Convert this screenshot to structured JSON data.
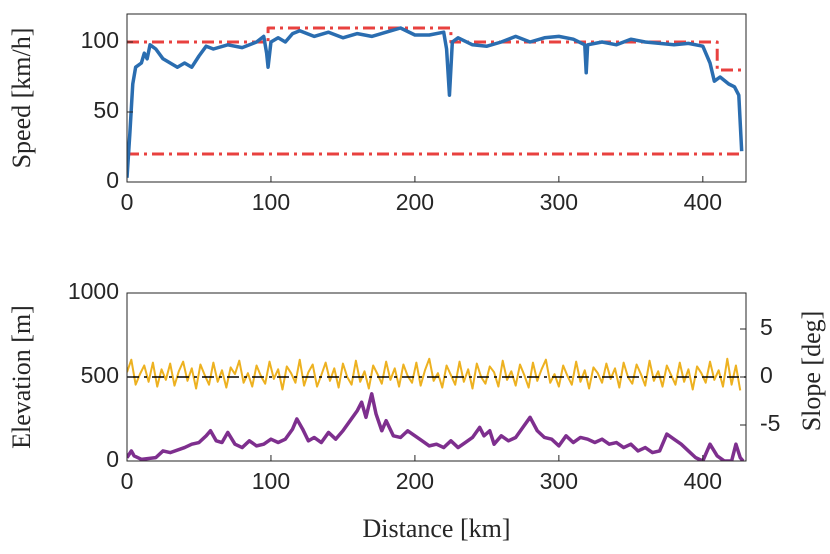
{
  "chart_data": [
    {
      "type": "line",
      "ylabel": "Speed [km/h]",
      "xlim": [
        0,
        430
      ],
      "xticks": [
        0,
        100,
        200,
        300,
        400
      ],
      "ylim": [
        0,
        120
      ],
      "yticks": [
        0,
        50,
        100
      ],
      "series": [
        {
          "color": "#e8413f",
          "style": "dashdot",
          "x": [
            0,
            98,
            98,
            225,
            225,
            410,
            410,
            428
          ],
          "values": [
            100,
            100,
            110,
            110,
            100,
            100,
            80,
            80
          ]
        },
        {
          "color": "#e8413f",
          "style": "dashdot",
          "x": [
            0,
            428
          ],
          "values": [
            20,
            20
          ]
        },
        {
          "color": "#2a6db0",
          "style": "solid",
          "x": [
            0,
            2,
            4,
            6,
            10,
            12,
            14,
            16,
            20,
            25,
            30,
            35,
            40,
            45,
            50,
            55,
            60,
            70,
            80,
            90,
            95,
            97,
            98,
            100,
            105,
            110,
            115,
            120,
            130,
            140,
            150,
            160,
            170,
            180,
            190,
            200,
            210,
            220,
            222,
            224,
            226,
            230,
            240,
            250,
            260,
            270,
            280,
            290,
            300,
            310,
            318,
            319,
            320,
            330,
            340,
            350,
            360,
            370,
            380,
            390,
            400,
            405,
            408,
            412,
            418,
            422,
            425,
            427
          ],
          "values": [
            3,
            35,
            70,
            82,
            85,
            92,
            88,
            98,
            95,
            88,
            85,
            82,
            85,
            82,
            90,
            97,
            95,
            98,
            96,
            100,
            104,
            92,
            82,
            100,
            103,
            100,
            106,
            108,
            104,
            107,
            103,
            106,
            104,
            107,
            110,
            105,
            105,
            107,
            95,
            62,
            100,
            103,
            98,
            97,
            100,
            104,
            100,
            103,
            104,
            102,
            98,
            78,
            98,
            100,
            98,
            102,
            100,
            99,
            98,
            99,
            97,
            85,
            72,
            75,
            70,
            68,
            62,
            22
          ]
        }
      ]
    },
    {
      "type": "line",
      "xlabel": "Distance [km]",
      "ylabel": "Elevation [m]",
      "y2label": "Slope [deg]",
      "xlim": [
        0,
        430
      ],
      "xticks": [
        0,
        100,
        200,
        300,
        400
      ],
      "ylim": [
        0,
        1000
      ],
      "yticks": [
        0,
        500,
        1000
      ],
      "y2lim": [
        -8.75,
        8.75
      ],
      "y2ticks": [
        -5,
        0,
        5
      ],
      "series": [
        {
          "color": "#edb120",
          "style": "solid",
          "axis": "y2",
          "x": [
            0,
            3,
            6,
            9,
            12,
            15,
            18,
            21,
            24,
            27,
            30,
            33,
            36,
            39,
            42,
            45,
            48,
            51,
            54,
            57,
            60,
            63,
            66,
            69,
            72,
            75,
            78,
            81,
            84,
            87,
            90,
            93,
            96,
            99,
            102,
            105,
            108,
            111,
            114,
            117,
            120,
            123,
            126,
            129,
            132,
            135,
            138,
            141,
            144,
            147,
            150,
            153,
            156,
            159,
            162,
            165,
            168,
            171,
            174,
            177,
            180,
            183,
            186,
            189,
            192,
            195,
            198,
            201,
            204,
            207,
            210,
            213,
            216,
            219,
            222,
            225,
            228,
            231,
            234,
            237,
            240,
            243,
            246,
            249,
            252,
            255,
            258,
            261,
            264,
            267,
            270,
            273,
            276,
            279,
            282,
            285,
            288,
            291,
            294,
            297,
            300,
            303,
            306,
            309,
            312,
            315,
            318,
            321,
            324,
            327,
            330,
            333,
            336,
            339,
            342,
            345,
            348,
            351,
            354,
            357,
            360,
            363,
            366,
            369,
            372,
            375,
            378,
            381,
            384,
            387,
            390,
            393,
            396,
            399,
            402,
            405,
            408,
            411,
            414,
            417,
            420,
            423,
            426
          ],
          "values": [
            0.5,
            1.8,
            -0.8,
            0.3,
            1.2,
            -0.5,
            1.5,
            -1,
            0.8,
            -0.3,
            1.4,
            -0.9,
            0.6,
            1.6,
            -0.4,
            0.9,
            -1.2,
            1.3,
            0.2,
            -0.8,
            1.5,
            -0.5,
            0.7,
            -1.1,
            1.0,
            0.3,
            1.7,
            -0.6,
            0.4,
            -1.0,
            1.2,
            0.1,
            -0.7,
            1.6,
            -0.2,
            0.8,
            -1.3,
            1.1,
            0.4,
            -0.6,
            1.8,
            -0.9,
            0.5,
            1.3,
            -1.0,
            0.2,
            1.5,
            -0.4,
            0.9,
            -1.1,
            1.4,
            0.0,
            -0.8,
            1.7,
            -0.5,
            0.6,
            -1.2,
            1.2,
            0.3,
            -0.7,
            1.6,
            -0.3,
            0.9,
            -1.0,
            1.3,
            0.1,
            -0.6,
            1.5,
            -0.9,
            0.7,
            1.9,
            -0.4,
            0.4,
            -1.1,
            1.2,
            0.2,
            -0.8,
            1.6,
            -0.5,
            0.8,
            -1.2,
            1.4,
            0.0,
            -0.7,
            1.1,
            0.5,
            -1.0,
            1.7,
            -0.3,
            0.6,
            -0.9,
            1.3,
            0.2,
            -1.1,
            1.5,
            -0.4,
            0.8,
            1.8,
            -0.6,
            0.3,
            -1.0,
            1.2,
            0.1,
            -0.8,
            1.6,
            -0.5,
            0.7,
            -1.2,
            1.0,
            0.4,
            -0.6,
            1.4,
            -0.2,
            0.9,
            -1.1,
            1.5,
            0.0,
            -0.7,
            1.3,
            0.3,
            -0.9,
            1.7,
            -0.4,
            0.6,
            -1.0,
            1.2,
            0.2,
            -0.8,
            1.5,
            -0.5,
            0.8,
            -1.3,
            1.1,
            0.4,
            -0.6,
            1.6,
            -0.3,
            0.7,
            -1.0,
            1.9,
            -0.8,
            1.2,
            -1.4
          ]
        },
        {
          "color": "#000000",
          "style": "dashdot",
          "axis": "y2",
          "x": [
            0,
            430
          ],
          "values": [
            0,
            0
          ]
        },
        {
          "color": "#7e2f8e",
          "style": "solid",
          "x": [
            0,
            3,
            5,
            10,
            20,
            25,
            30,
            40,
            45,
            50,
            55,
            58,
            62,
            66,
            70,
            75,
            80,
            85,
            90,
            95,
            100,
            105,
            110,
            115,
            118,
            122,
            126,
            130,
            135,
            140,
            145,
            150,
            155,
            160,
            163,
            166,
            170,
            173,
            177,
            180,
            185,
            190,
            195,
            200,
            205,
            210,
            215,
            220,
            225,
            230,
            235,
            240,
            245,
            248,
            252,
            255,
            260,
            265,
            270,
            275,
            280,
            285,
            290,
            295,
            300,
            305,
            310,
            315,
            320,
            325,
            330,
            335,
            340,
            345,
            350,
            355,
            360,
            365,
            370,
            375,
            380,
            385,
            390,
            395,
            400,
            405,
            410,
            415,
            420,
            423,
            426,
            428
          ],
          "values": [
            20,
            60,
            30,
            10,
            20,
            60,
            50,
            80,
            100,
            110,
            150,
            180,
            120,
            110,
            170,
            100,
            80,
            120,
            90,
            100,
            130,
            110,
            130,
            190,
            250,
            190,
            120,
            140,
            110,
            170,
            130,
            180,
            240,
            300,
            350,
            260,
            400,
            280,
            180,
            240,
            150,
            140,
            180,
            150,
            120,
            90,
            100,
            80,
            120,
            80,
            110,
            140,
            200,
            150,
            180,
            100,
            150,
            120,
            140,
            200,
            260,
            180,
            140,
            130,
            90,
            150,
            110,
            140,
            130,
            110,
            130,
            100,
            110,
            80,
            100,
            60,
            80,
            50,
            60,
            160,
            130,
            100,
            60,
            20,
            0,
            100,
            30,
            0,
            0,
            100,
            20,
            0
          ]
        }
      ]
    }
  ]
}
